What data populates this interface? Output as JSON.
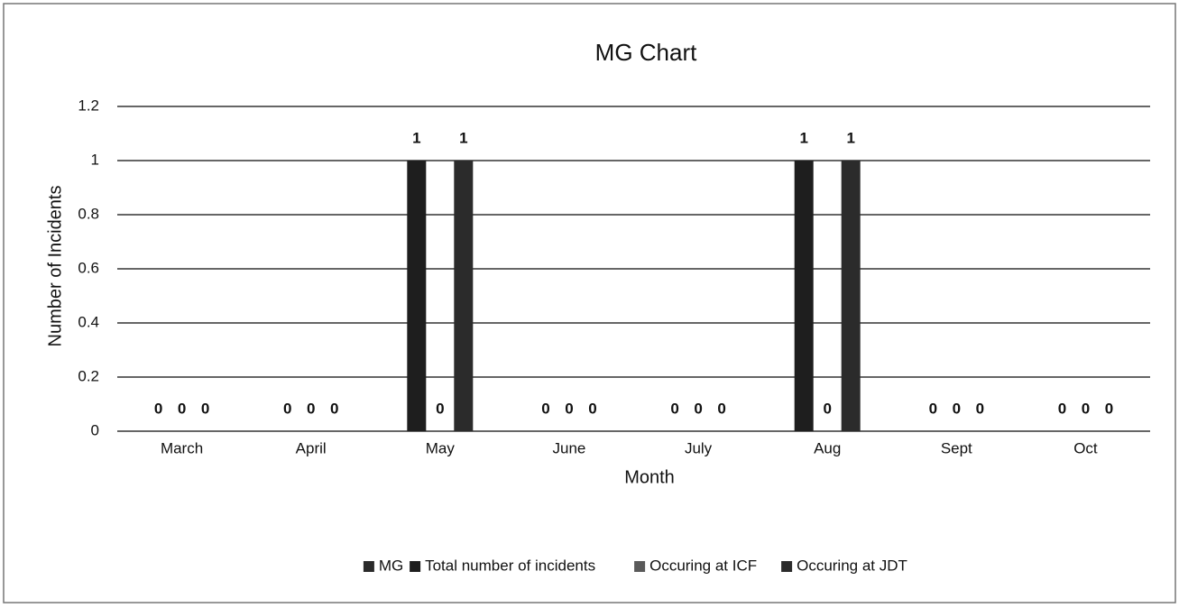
{
  "chart_data": {
    "type": "bar",
    "title": "MG Chart",
    "x_label": "Month",
    "y_label": "Number of Incidents",
    "categories": [
      "March",
      "April",
      "May",
      "June",
      "July",
      "Aug",
      "Sept",
      "Oct"
    ],
    "series": [
      {
        "name": "MG",
        "color": "#2a2a2a",
        "values": [
          null,
          null,
          null,
          null,
          null,
          null,
          null,
          null
        ]
      },
      {
        "name": "Total number of incidents",
        "color": "#1e1e1e",
        "values": [
          0,
          0,
          1,
          0,
          0,
          1,
          0,
          0
        ]
      },
      {
        "name": "Occuring at ICF",
        "color": "#5a5a5a",
        "values": [
          0,
          0,
          0,
          0,
          0,
          0,
          0,
          0
        ]
      },
      {
        "name": "Occuring at JDT",
        "color": "#2b2b2b",
        "values": [
          0,
          0,
          1,
          0,
          0,
          1,
          0,
          0
        ]
      }
    ],
    "ylim": [
      0,
      1.2
    ],
    "yticks": [
      0,
      0.2,
      0.4,
      0.6,
      0.8,
      1,
      1.2
    ],
    "grid": true,
    "legend": "bottom"
  }
}
